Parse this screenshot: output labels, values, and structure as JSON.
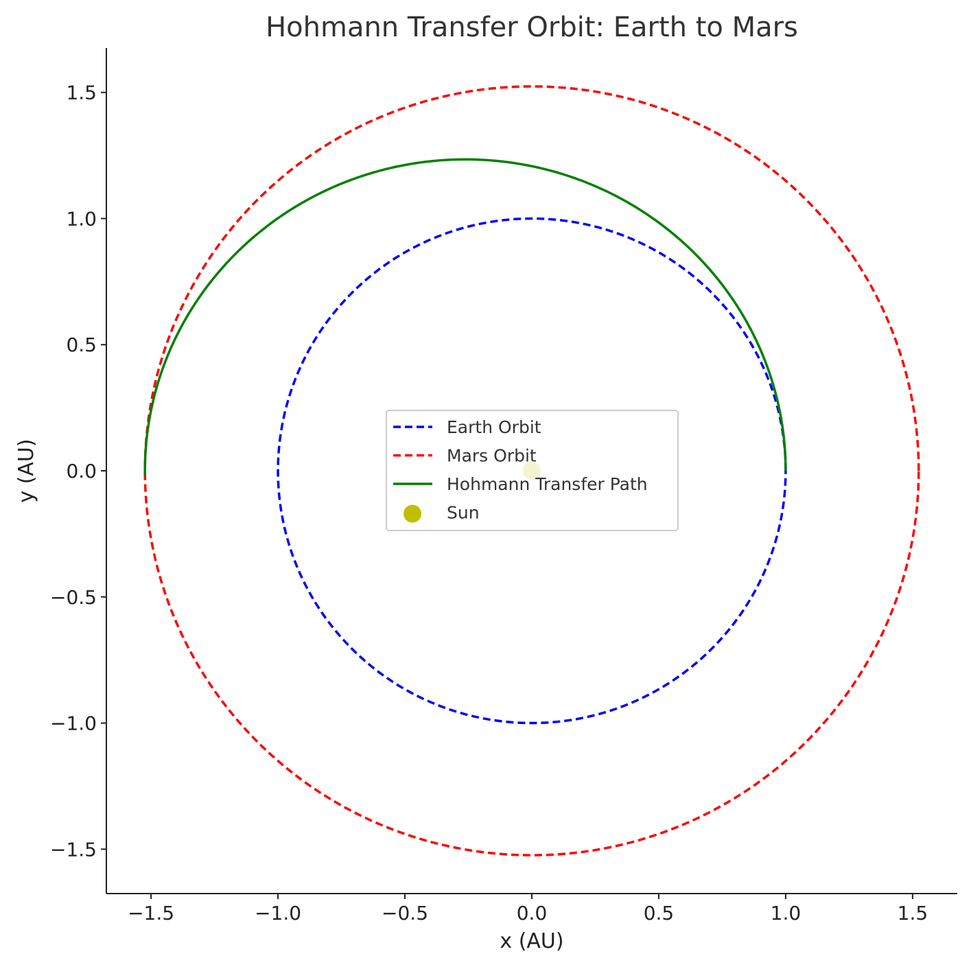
{
  "chart_data": {
    "type": "line",
    "title": "Hohmann Transfer Orbit: Earth to Mars",
    "xlabel": "x (AU)",
    "ylabel": "y (AU)",
    "xlim": [
      -1.676,
      1.676
    ],
    "ylim": [
      -1.676,
      1.676
    ],
    "xticks": [
      -1.5,
      -1.0,
      -0.5,
      0.0,
      0.5,
      1.0,
      1.5
    ],
    "yticks": [
      -1.5,
      -1.0,
      -0.5,
      0.0,
      0.5,
      1.0,
      1.5
    ],
    "xtick_labels": [
      "−1.5",
      "−1.0",
      "−0.5",
      "0.0",
      "0.5",
      "1.0",
      "1.5"
    ],
    "ytick_labels": [
      "−1.5",
      "−1.0",
      "−0.5",
      "0.0",
      "0.5",
      "1.0",
      "1.5"
    ],
    "grid": false,
    "legend_position": "center",
    "series": [
      {
        "name": "Earth Orbit",
        "kind": "circle",
        "radius": 1.0,
        "color": "#0000ff",
        "style": "dashed"
      },
      {
        "name": "Mars Orbit",
        "kind": "circle",
        "radius": 1.524,
        "color": "#ff0000",
        "style": "dashed"
      },
      {
        "name": "Hohmann Transfer Path",
        "kind": "ellipse-arc",
        "perihelion": 1.0,
        "aphelion": 1.524,
        "from_angle_deg": 0,
        "to_angle_deg": 181,
        "color": "#008000",
        "style": "solid"
      },
      {
        "name": "Sun",
        "kind": "point",
        "x": 0.0,
        "y": 0.0,
        "color": "#bfbf00",
        "style": "marker"
      }
    ]
  }
}
